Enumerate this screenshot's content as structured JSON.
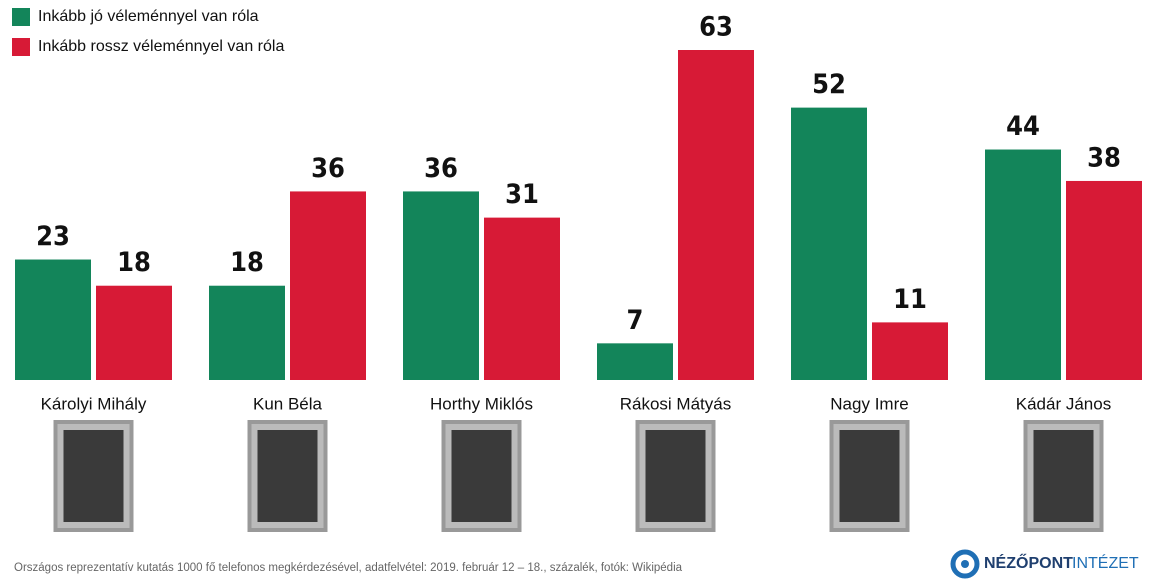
{
  "chart_data": {
    "type": "bar",
    "categories": [
      "Károlyi Mihály",
      "Kun Béla",
      "Horthy Miklós",
      "Rákosi Mátyás",
      "Nagy Imre",
      "Kádár János"
    ],
    "series": [
      {
        "name": "Inkább jó véleménnyel van róla",
        "color": "#13855a",
        "values": [
          23,
          18,
          36,
          7,
          52,
          44
        ]
      },
      {
        "name": "Inkább rossz véleménnyel van róla",
        "color": "#d71a36",
        "values": [
          18,
          36,
          31,
          63,
          11,
          38
        ]
      }
    ],
    "legend": "top-left",
    "source": "Országos reprezentatív kutatás 1000 fő telefonos megkérdezésével, adatfelvétel: 2019. február 12 – 18., százalék, fotók: Wikipédia",
    "logo": {
      "name": "NÉZŐPONT",
      "suffix": "INTÉZET"
    }
  }
}
